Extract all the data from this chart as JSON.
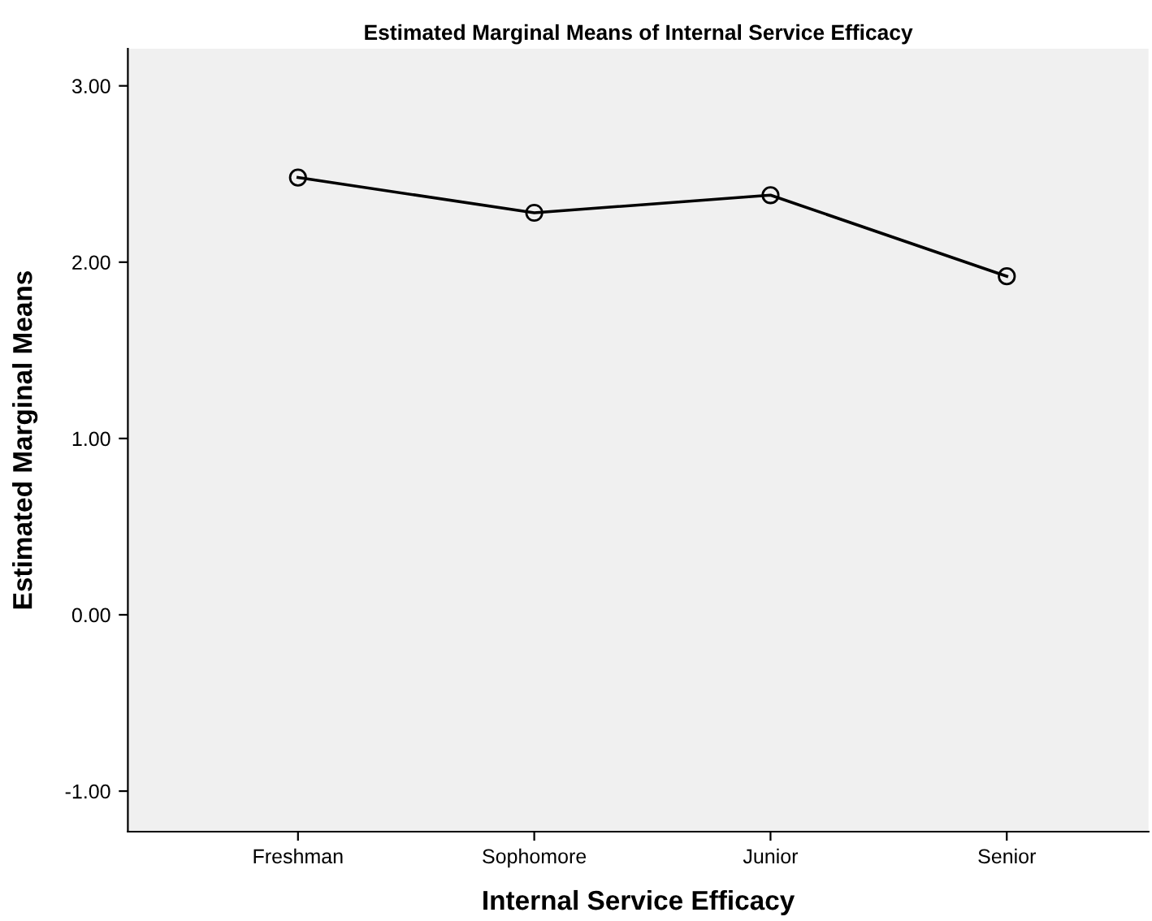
{
  "chart_data": {
    "type": "line",
    "title": "Estimated Marginal Means of Internal Service Efficacy",
    "xlabel": "Internal Service Efficacy",
    "ylabel": "Estimated Marginal Means",
    "categories": [
      "Freshman",
      "Sophomore",
      "Junior",
      "Senior"
    ],
    "series": [
      {
        "color": "#000000",
        "values": [
          2.48,
          2.28,
          2.38,
          1.92
        ]
      }
    ],
    "ylim": [
      -1.23,
      3.21
    ],
    "yticks": [
      {
        "value": -1,
        "label": "-1.00"
      },
      {
        "value": 0,
        "label": "0.00"
      },
      {
        "value": 1,
        "label": "1.00"
      },
      {
        "value": 2,
        "label": "2.00"
      },
      {
        "value": 3,
        "label": "3.00"
      }
    ],
    "marker": "circle",
    "line_style": "solid",
    "grid": false,
    "legend": false
  }
}
